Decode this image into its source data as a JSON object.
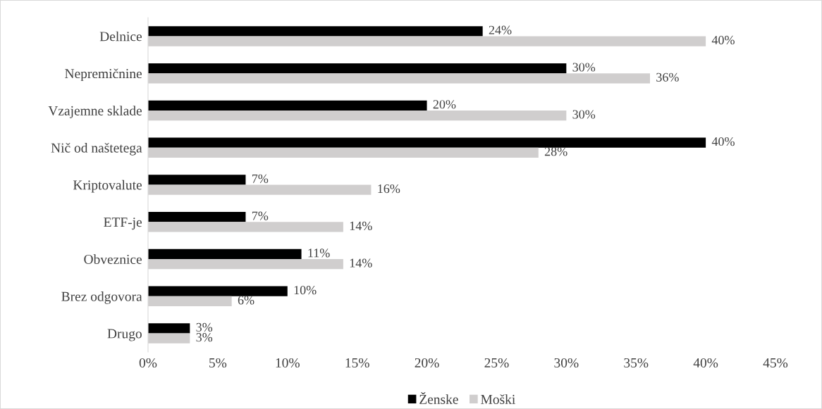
{
  "chart_data": {
    "type": "bar",
    "orientation": "horizontal",
    "categories": [
      "Delnice",
      "Nepremičnine",
      "Vzajemne sklade",
      "Nič od naštetega",
      "Kriptovalute",
      "ETF-je",
      "Obveznice",
      "Brez odgovora",
      "Drugo"
    ],
    "series": [
      {
        "name": "Ženske",
        "color": "#000000",
        "values": [
          24,
          30,
          20,
          40,
          7,
          7,
          11,
          10,
          3
        ],
        "value_labels": [
          "24%",
          "30%",
          "20%",
          "40%",
          "7%",
          "7%",
          "11%",
          "10%",
          "3%"
        ]
      },
      {
        "name": "Moški",
        "color": "#d0cece",
        "values": [
          40,
          36,
          30,
          28,
          16,
          14,
          14,
          6,
          3
        ],
        "value_labels": [
          "40%",
          "36%",
          "30%",
          "28%",
          "16%",
          "14%",
          "14%",
          "6%",
          "3%"
        ]
      }
    ],
    "xlim": [
      0,
      45
    ],
    "xticks": [
      {
        "value": 0,
        "label": "0%"
      },
      {
        "value": 5,
        "label": "5%"
      },
      {
        "value": 10,
        "label": "10%"
      },
      {
        "value": 15,
        "label": "15%"
      },
      {
        "value": 20,
        "label": "20%"
      },
      {
        "value": 25,
        "label": "25%"
      },
      {
        "value": 30,
        "label": "30%"
      },
      {
        "value": 35,
        "label": "35%"
      },
      {
        "value": 40,
        "label": "40%"
      },
      {
        "value": 45,
        "label": "45%"
      }
    ],
    "grid": false,
    "legend": "bottom"
  }
}
